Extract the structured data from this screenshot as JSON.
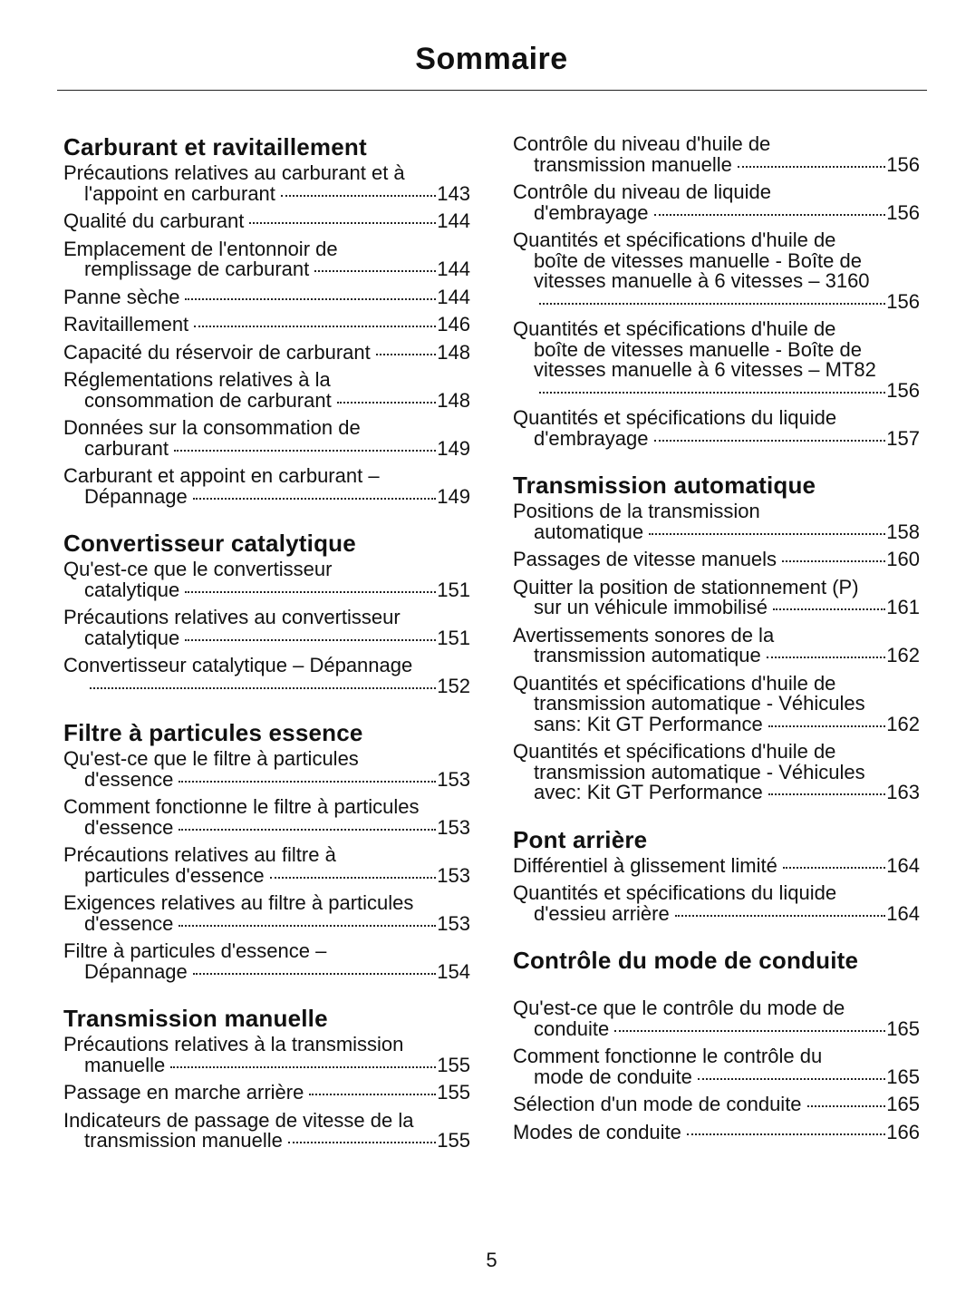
{
  "title": "Sommaire",
  "page_number": "5",
  "columns": [
    {
      "sections": [
        {
          "heading": "Carburant et ravitaillement",
          "entries": [
            {
              "lines": [
                "Précautions relatives au carburant et à",
                "l'appoint en carburant"
              ],
              "page": "143"
            },
            {
              "lines": [
                "Qualité du carburant"
              ],
              "page": "144"
            },
            {
              "lines": [
                "Emplacement de l'entonnoir de",
                "remplissage de carburant"
              ],
              "page": "144"
            },
            {
              "lines": [
                "Panne sèche"
              ],
              "page": "144"
            },
            {
              "lines": [
                "Ravitaillement"
              ],
              "page": "146"
            },
            {
              "lines": [
                "Capacité du réservoir de carburant"
              ],
              "page": "148"
            },
            {
              "lines": [
                "Réglementations relatives à la",
                "consommation de carburant"
              ],
              "page": "148"
            },
            {
              "lines": [
                "Données sur la consommation de",
                "carburant"
              ],
              "page": "149"
            },
            {
              "lines": [
                "Carburant et appoint en carburant –",
                "Dépannage"
              ],
              "page": "149"
            }
          ]
        },
        {
          "heading": "Convertisseur catalytique",
          "entries": [
            {
              "lines": [
                "Qu'est-ce que le convertisseur",
                "catalytique"
              ],
              "page": "151"
            },
            {
              "lines": [
                "Précautions relatives au convertisseur",
                "catalytique"
              ],
              "page": "151"
            },
            {
              "lines": [
                "Convertisseur catalytique – Dépannage",
                ""
              ],
              "page": "152"
            }
          ]
        },
        {
          "heading": "Filtre à particules essence",
          "entries": [
            {
              "lines": [
                "Qu'est-ce que le filtre à particules",
                "d'essence"
              ],
              "page": "153"
            },
            {
              "lines": [
                "Comment fonctionne le filtre à particules",
                "d'essence"
              ],
              "page": "153"
            },
            {
              "lines": [
                "Précautions relatives au filtre à",
                "particules d'essence"
              ],
              "page": "153"
            },
            {
              "lines": [
                "Exigences relatives au filtre à particules",
                "d'essence"
              ],
              "page": "153"
            },
            {
              "lines": [
                "Filtre à particules d'essence –",
                "Dépannage"
              ],
              "page": "154"
            }
          ]
        },
        {
          "heading": "Transmission manuelle",
          "entries": [
            {
              "lines": [
                "Précautions relatives à la transmission",
                "manuelle"
              ],
              "page": "155"
            },
            {
              "lines": [
                "Passage en marche arrière"
              ],
              "page": "155"
            },
            {
              "lines": [
                "Indicateurs de passage de vitesse de la",
                "transmission manuelle"
              ],
              "page": "155"
            }
          ]
        }
      ]
    },
    {
      "sections": [
        {
          "heading": "",
          "entries": [
            {
              "lines": [
                "Contrôle du niveau d'huile de",
                "transmission manuelle"
              ],
              "page": "156"
            },
            {
              "lines": [
                "Contrôle du niveau de liquide",
                "d'embrayage"
              ],
              "page": "156"
            },
            {
              "lines": [
                "Quantités et spécifications d'huile de",
                "boîte de vitesses manuelle - Boîte de",
                "vitesses manuelle à 6 vitesses – 3160",
                ""
              ],
              "page": "156"
            },
            {
              "lines": [
                "Quantités et spécifications d'huile de",
                "boîte de vitesses manuelle - Boîte de",
                "vitesses manuelle à 6 vitesses – MT82",
                ""
              ],
              "page": "156"
            },
            {
              "lines": [
                "Quantités et spécifications du liquide",
                "d'embrayage"
              ],
              "page": "157"
            }
          ]
        },
        {
          "heading": "Transmission automatique",
          "entries": [
            {
              "lines": [
                "Positions de la transmission",
                "automatique"
              ],
              "page": "158"
            },
            {
              "lines": [
                "Passages de vitesse manuels"
              ],
              "page": "160"
            },
            {
              "lines": [
                "Quitter la position de stationnement (P)",
                "sur un véhicule immobilisé"
              ],
              "page": "161"
            },
            {
              "lines": [
                "Avertissements sonores de la",
                "transmission automatique"
              ],
              "page": "162"
            },
            {
              "lines": [
                "Quantités et spécifications d'huile de",
                "transmission automatique - Véhicules",
                "sans: Kit GT Performance"
              ],
              "page": "162"
            },
            {
              "lines": [
                "Quantités et spécifications d'huile de",
                "transmission automatique - Véhicules",
                "avec: Kit GT Performance"
              ],
              "page": "163"
            }
          ]
        },
        {
          "heading": "Pont arrière",
          "entries": [
            {
              "lines": [
                "Différentiel à glissement limité"
              ],
              "page": "164"
            },
            {
              "lines": [
                "Quantités et spécifications du liquide",
                "d'essieu arrière"
              ],
              "page": "164"
            }
          ]
        },
        {
          "heading": "Contrôle du mode de conduite",
          "entries": [
            {
              "lines": [
                "Qu'est-ce que le contrôle du mode de",
                "conduite"
              ],
              "page": "165"
            },
            {
              "lines": [
                "Comment fonctionne le contrôle du",
                "mode de conduite"
              ],
              "page": "165"
            },
            {
              "lines": [
                "Sélection d'un mode de conduite"
              ],
              "page": "165"
            },
            {
              "lines": [
                "Modes de conduite"
              ],
              "page": "166"
            }
          ]
        }
      ]
    }
  ]
}
